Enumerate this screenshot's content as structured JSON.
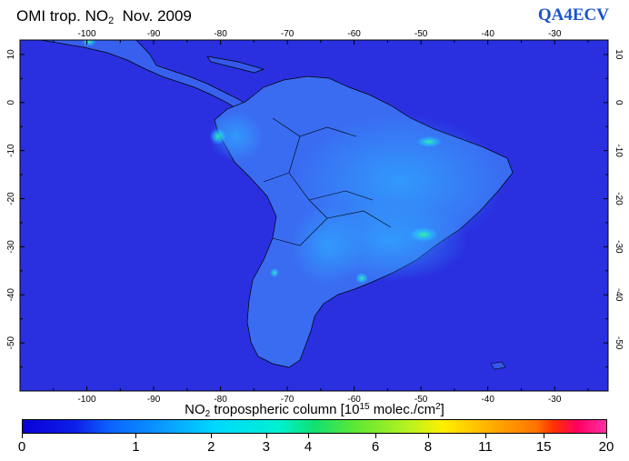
{
  "title": {
    "prefix": "OMI trop. NO",
    "subscript": "2",
    "period": "Nov. 2009"
  },
  "brand": "QA4ECV",
  "map": {
    "region": "South America",
    "projection": "equirectangular",
    "lon_range": [
      -110,
      -22
    ],
    "lat_range": [
      -60,
      13
    ],
    "lon_ticks": [
      -100,
      -90,
      -80,
      -70,
      -60,
      -50,
      -40,
      -30
    ],
    "lat_ticks": [
      10,
      0,
      -10,
      -20,
      -30,
      -40,
      -50
    ],
    "ocean_color": "#2a2ee0"
  },
  "legend": {
    "caption_prefix": "NO",
    "caption_subscript": "2",
    "caption_mid": " tropospheric column [10",
    "caption_sup1": "15",
    "caption_mid2": " molec./cm",
    "caption_sup2": "2",
    "caption_end": "]",
    "ticks": [
      {
        "label": "0",
        "frac": 0.0
      },
      {
        "label": "1",
        "frac": 0.195
      },
      {
        "label": "2",
        "frac": 0.324
      },
      {
        "label": "3",
        "frac": 0.418
      },
      {
        "label": "4",
        "frac": 0.49
      },
      {
        "label": "6",
        "frac": 0.605
      },
      {
        "label": "8",
        "frac": 0.695
      },
      {
        "label": "11",
        "frac": 0.793
      },
      {
        "label": "15",
        "frac": 0.893
      },
      {
        "label": "20",
        "frac": 1.0
      }
    ]
  }
}
